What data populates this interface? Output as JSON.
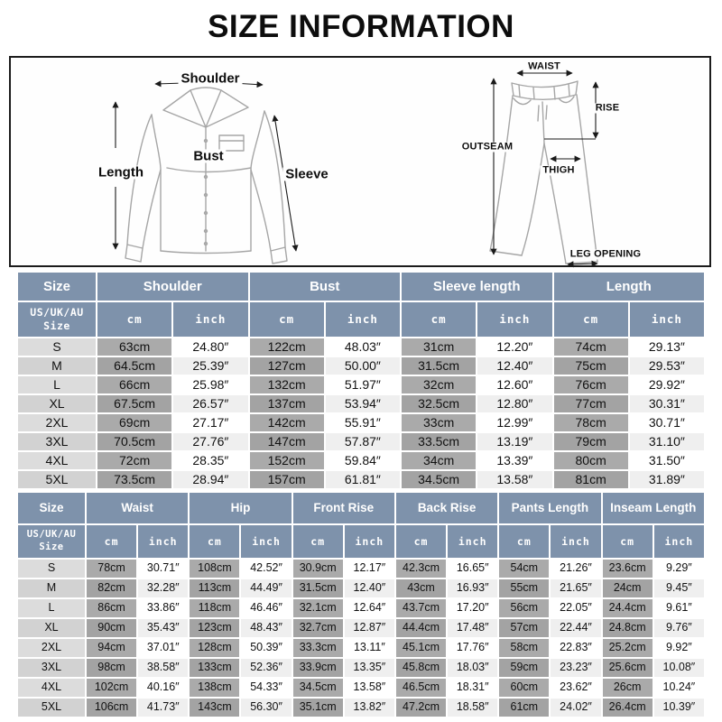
{
  "title": "SIZE INFORMATION",
  "diagram": {
    "shirt": {
      "shoulder": "Shoulder",
      "bust": "Bust",
      "length": "Length",
      "sleeve": "Sleeve"
    },
    "pants": {
      "waist": "WAIST",
      "rise": "RISE",
      "outseam": "OUTSEAM",
      "thigh": "THIGH",
      "leg_opening": "LEG OPENING"
    }
  },
  "colors": {
    "header_bg": "#7E92AB",
    "unit_cm_bg": "#AAAAAA",
    "size_col_bg": "#DCDCDC",
    "inch_col_bg": "#FFFFFF",
    "row_alt_bg": "#EFEFEF"
  },
  "tables": [
    {
      "id": "tops",
      "size_header": "Size",
      "sub_size_header": "US/UK/AU\nSize",
      "unit_headers": [
        "cm",
        "inch"
      ],
      "groups": [
        "Shoulder",
        "Bust",
        "Sleeve length",
        "Length"
      ],
      "rows": [
        {
          "size": "S",
          "values": [
            "63cm",
            "24.80″",
            "122cm",
            "48.03″",
            "31cm",
            "12.20″",
            "74cm",
            "29.13″"
          ]
        },
        {
          "size": "M",
          "values": [
            "64.5cm",
            "25.39″",
            "127cm",
            "50.00″",
            "31.5cm",
            "12.40″",
            "75cm",
            "29.53″"
          ]
        },
        {
          "size": "L",
          "values": [
            "66cm",
            "25.98″",
            "132cm",
            "51.97″",
            "32cm",
            "12.60″",
            "76cm",
            "29.92″"
          ]
        },
        {
          "size": "XL",
          "values": [
            "67.5cm",
            "26.57″",
            "137cm",
            "53.94″",
            "32.5cm",
            "12.80″",
            "77cm",
            "30.31″"
          ]
        },
        {
          "size": "2XL",
          "values": [
            "69cm",
            "27.17″",
            "142cm",
            "55.91″",
            "33cm",
            "12.99″",
            "78cm",
            "30.71″"
          ]
        },
        {
          "size": "3XL",
          "values": [
            "70.5cm",
            "27.76″",
            "147cm",
            "57.87″",
            "33.5cm",
            "13.19″",
            "79cm",
            "31.10″"
          ]
        },
        {
          "size": "4XL",
          "values": [
            "72cm",
            "28.35″",
            "152cm",
            "59.84″",
            "34cm",
            "13.39″",
            "80cm",
            "31.50″"
          ]
        },
        {
          "size": "5XL",
          "values": [
            "73.5cm",
            "28.94″",
            "157cm",
            "61.81″",
            "34.5cm",
            "13.58″",
            "81cm",
            "31.89″"
          ]
        }
      ]
    },
    {
      "id": "bottoms",
      "size_header": "Size",
      "sub_size_header": "US/UK/AU\nSize",
      "unit_headers": [
        "cm",
        "inch"
      ],
      "groups": [
        "Waist",
        "Hip",
        "Front Rise",
        "Back Rise",
        "Pants Length",
        "Inseam Length"
      ],
      "rows": [
        {
          "size": "S",
          "values": [
            "78cm",
            "30.71″",
            "108cm",
            "42.52″",
            "30.9cm",
            "12.17″",
            "42.3cm",
            "16.65″",
            "54cm",
            "21.26″",
            "23.6cm",
            "9.29″"
          ]
        },
        {
          "size": "M",
          "values": [
            "82cm",
            "32.28″",
            "113cm",
            "44.49″",
            "31.5cm",
            "12.40″",
            "43cm",
            "16.93″",
            "55cm",
            "21.65″",
            "24cm",
            "9.45″"
          ]
        },
        {
          "size": "L",
          "values": [
            "86cm",
            "33.86″",
            "118cm",
            "46.46″",
            "32.1cm",
            "12.64″",
            "43.7cm",
            "17.20″",
            "56cm",
            "22.05″",
            "24.4cm",
            "9.61″"
          ]
        },
        {
          "size": "XL",
          "values": [
            "90cm",
            "35.43″",
            "123cm",
            "48.43″",
            "32.7cm",
            "12.87″",
            "44.4cm",
            "17.48″",
            "57cm",
            "22.44″",
            "24.8cm",
            "9.76″"
          ]
        },
        {
          "size": "2XL",
          "values": [
            "94cm",
            "37.01″",
            "128cm",
            "50.39″",
            "33.3cm",
            "13.11″",
            "45.1cm",
            "17.76″",
            "58cm",
            "22.83″",
            "25.2cm",
            "9.92″"
          ]
        },
        {
          "size": "3XL",
          "values": [
            "98cm",
            "38.58″",
            "133cm",
            "52.36″",
            "33.9cm",
            "13.35″",
            "45.8cm",
            "18.03″",
            "59cm",
            "23.23″",
            "25.6cm",
            "10.08″"
          ]
        },
        {
          "size": "4XL",
          "values": [
            "102cm",
            "40.16″",
            "138cm",
            "54.33″",
            "34.5cm",
            "13.58″",
            "46.5cm",
            "18.31″",
            "60cm",
            "23.62″",
            "26cm",
            "10.24″"
          ]
        },
        {
          "size": "5XL",
          "values": [
            "106cm",
            "41.73″",
            "143cm",
            "56.30″",
            "35.1cm",
            "13.82″",
            "47.2cm",
            "18.58″",
            "61cm",
            "24.02″",
            "26.4cm",
            "10.39″"
          ]
        }
      ]
    }
  ]
}
